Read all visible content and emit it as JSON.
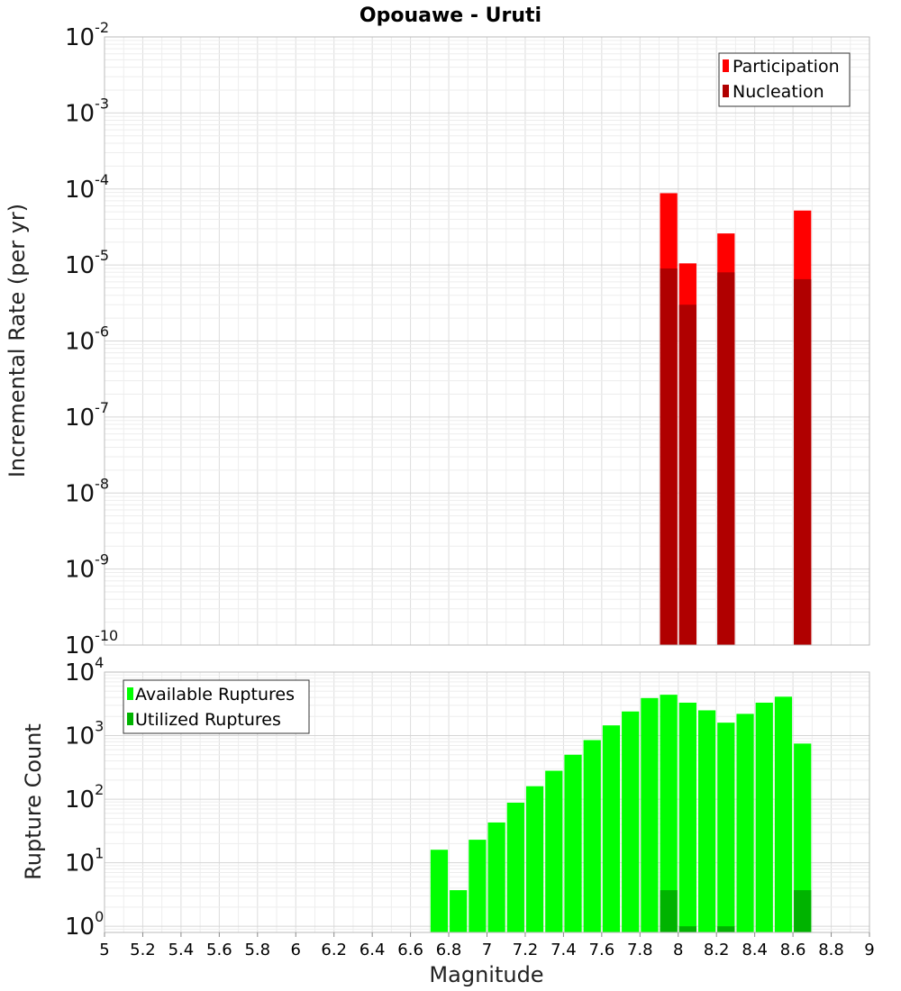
{
  "chart_data": {
    "title": "Opouawe - Uruti",
    "xlabel": "Magnitude",
    "x_ticks": [
      "5",
      "5.2",
      "5.4",
      "5.6",
      "5.8",
      "6",
      "6.2",
      "6.4",
      "6.6",
      "6.8",
      "7",
      "7.2",
      "7.4",
      "7.6",
      "7.8",
      "8",
      "8.2",
      "8.4",
      "8.6",
      "8.8",
      "9"
    ],
    "xlim": [
      5,
      9
    ],
    "grid": true,
    "panels": [
      {
        "type": "bar",
        "ylabel": "Incremental Rate (per yr)",
        "yscale": "log",
        "ylim": [
          1e-10,
          0.01
        ],
        "y_tick_exponents": [
          "-10",
          "-9",
          "-8",
          "-7",
          "-6",
          "-5",
          "-4",
          "-3",
          "-2"
        ],
        "legend_position": "top-right",
        "series": [
          {
            "name": "Participation",
            "color": "#ff0000",
            "x": [
              7.95,
              8.05,
              8.25,
              8.65
            ],
            "values": [
              8.8e-05,
              1.05e-05,
              2.6e-05,
              5.2e-05
            ]
          },
          {
            "name": "Nucleation",
            "color": "#b00000",
            "x": [
              7.95,
              8.05,
              8.25,
              8.65
            ],
            "values": [
              9e-06,
              3e-06,
              8e-06,
              6.5e-06
            ]
          }
        ]
      },
      {
        "type": "bar",
        "ylabel": "Rupture Count",
        "yscale": "log",
        "ylim": [
          0.8,
          10000
        ],
        "y_tick_exponents": [
          "0",
          "1",
          "2",
          "3",
          "4"
        ],
        "legend_position": "top-left",
        "series": [
          {
            "name": "Available Ruptures",
            "color": "#00ff00",
            "x": [
              6.75,
              6.85,
              6.95,
              7.05,
              7.15,
              7.25,
              7.35,
              7.45,
              7.55,
              7.65,
              7.75,
              7.85,
              7.95,
              8.05,
              8.15,
              8.25,
              8.35,
              8.45,
              8.55,
              8.65
            ],
            "values": [
              16,
              3.7,
              23,
              43,
              88,
              160,
              280,
              500,
              850,
              1450,
              2400,
              3900,
              4400,
              3300,
              2500,
              1600,
              2200,
              3300,
              4100,
              750
            ]
          },
          {
            "name": "Utilized Ruptures",
            "color": "#00b300",
            "x": [
              7.95,
              8.05,
              8.25,
              8.65
            ],
            "values": [
              3.7,
              1,
              1,
              3.7
            ]
          }
        ]
      }
    ]
  }
}
